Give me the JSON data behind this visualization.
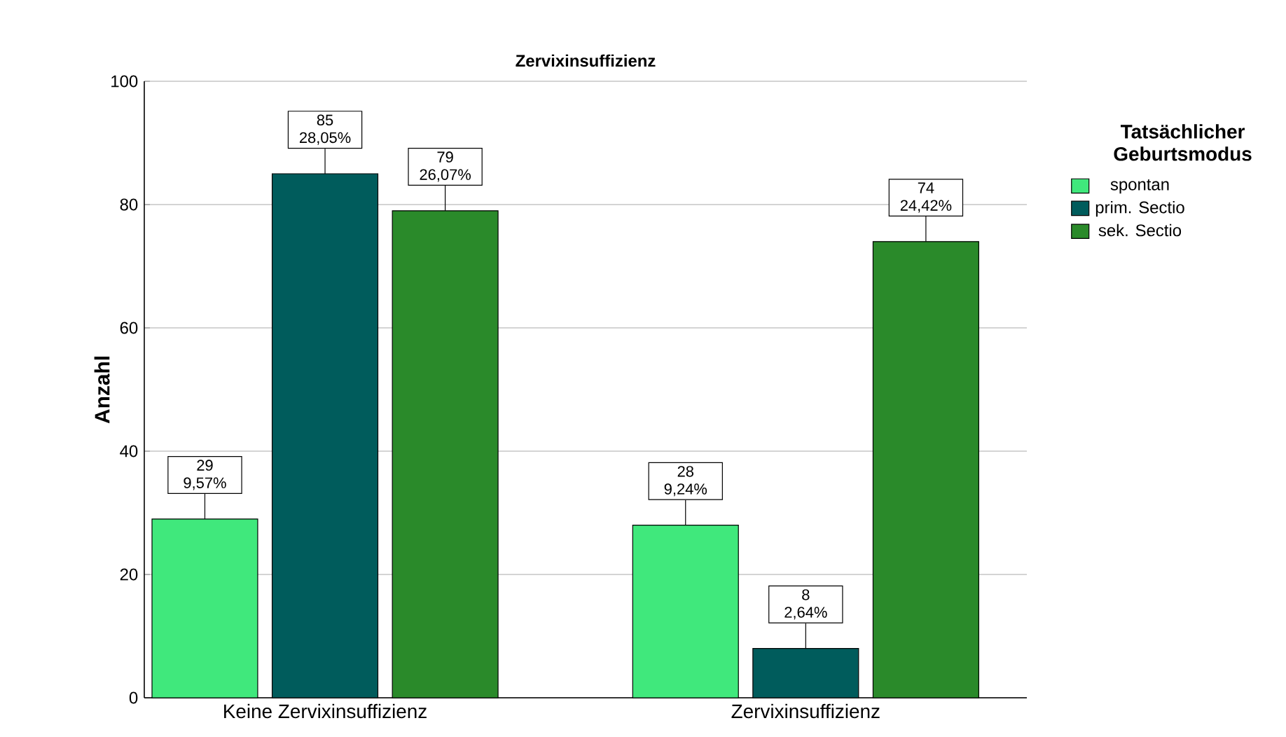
{
  "chart_data": {
    "type": "bar",
    "title": "Zervixinsuffizienz",
    "ylabel": "Anzahl",
    "legend_title": "Tatsächlicher Geburtsmodus",
    "categories": [
      "Keine Zervixinsuffizienz",
      "Zervixinsuffizienz"
    ],
    "series": [
      {
        "name": "spontan",
        "color": "#40e87c",
        "values": [
          29,
          28
        ],
        "value_labels": [
          "29 9,57%",
          "28 9,24%"
        ]
      },
      {
        "name": "prim. Sectio",
        "color": "#005c5c",
        "values": [
          85,
          8
        ],
        "value_labels": [
          "85 28,05%",
          "8 2,64%"
        ]
      },
      {
        "name": "sek. Sectio",
        "color": "#2a8a2a",
        "values": [
          79,
          74
        ],
        "value_labels": [
          "79 26,07%",
          "74 24,42%"
        ]
      }
    ],
    "ylim": [
      0,
      100
    ],
    "yticks": [
      0,
      20,
      40,
      60,
      80,
      100
    ],
    "grid": "y",
    "legend": "top right"
  }
}
